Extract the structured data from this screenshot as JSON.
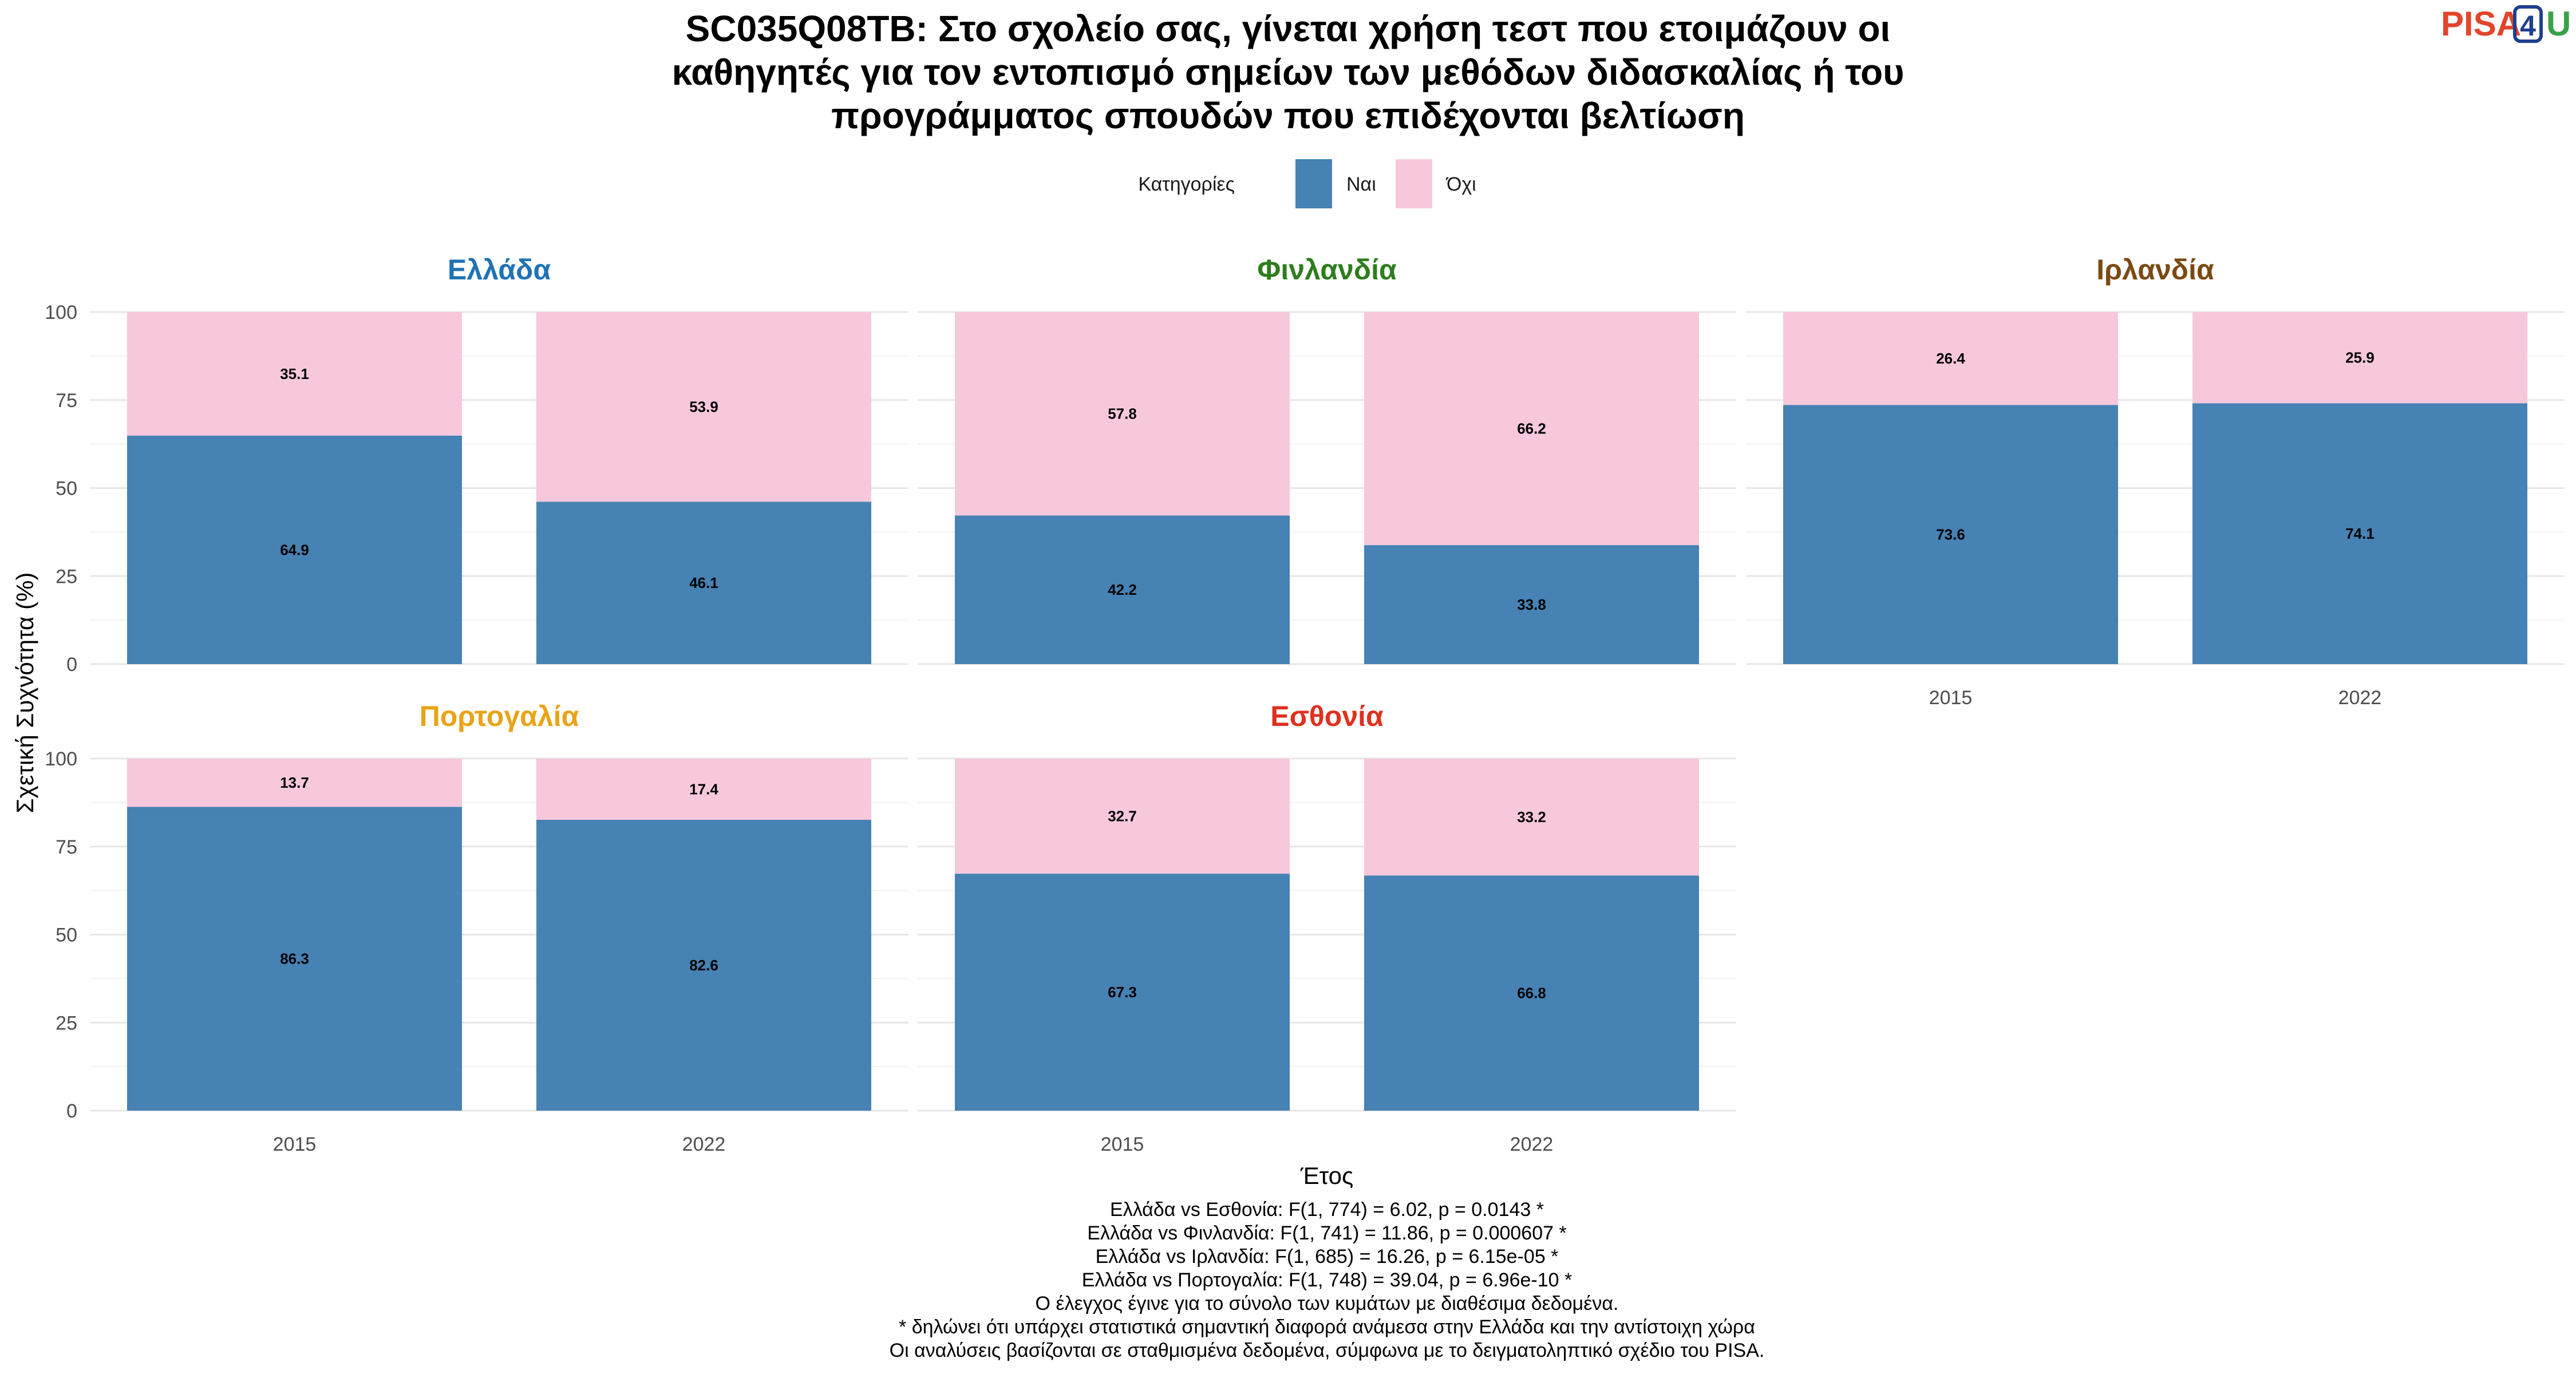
{
  "title_lines": [
    "SC035Q08TB: Στο σχολείο σας, γίνεται χρήση τεστ που ετοιμάζουν οι",
    "καθηγητές για τον εντοπισμό σημείων των μεθόδων διδασκαλίας ή του",
    "προγράμματος σπουδών που επιδέχονται βελτίωση"
  ],
  "logo": {
    "text": "PISA",
    "digit": "4",
    "letter": "U"
  },
  "chart_data": {
    "type": "bar",
    "stacked": true,
    "percent": true,
    "xlabel": "Έτος",
    "ylabel": "Σχετική Συχνότητα (%)",
    "ylim": [
      0,
      100
    ],
    "yticks": [
      0,
      25,
      50,
      75,
      100
    ],
    "categories": [
      "2015",
      "2022"
    ],
    "legend": {
      "title": "Κατηγορίες",
      "position": "top",
      "items": [
        {
          "label": "Ναι",
          "color": "#4682b4"
        },
        {
          "label": "Όχι",
          "color": "#f7c8dc"
        }
      ]
    },
    "grid": true,
    "panels": [
      {
        "name": "Ελλάδα",
        "color": "#1f73b4",
        "series": [
          {
            "name": "Ναι",
            "values": [
              64.9,
              46.1
            ]
          },
          {
            "name": "Όχι",
            "values": [
              35.1,
              53.9
            ]
          }
        ]
      },
      {
        "name": "Φινλανδία",
        "color": "#2e7d1f",
        "series": [
          {
            "name": "Ναι",
            "values": [
              42.2,
              33.8
            ]
          },
          {
            "name": "Όχι",
            "values": [
              57.8,
              66.2
            ]
          }
        ]
      },
      {
        "name": "Ιρλανδία",
        "color": "#7b4a14",
        "series": [
          {
            "name": "Ναι",
            "values": [
              73.6,
              74.1
            ]
          },
          {
            "name": "Όχι",
            "values": [
              26.4,
              25.9
            ]
          }
        ]
      },
      {
        "name": "Πορτογαλία",
        "color": "#e8a317",
        "series": [
          {
            "name": "Ναι",
            "values": [
              86.3,
              82.6
            ]
          },
          {
            "name": "Όχι",
            "values": [
              13.7,
              17.4
            ]
          }
        ]
      },
      {
        "name": "Εσθονία",
        "color": "#e0301e",
        "series": [
          {
            "name": "Ναι",
            "values": [
              67.3,
              66.8
            ]
          },
          {
            "name": "Όχι",
            "values": [
              32.7,
              33.2
            ]
          }
        ]
      }
    ]
  },
  "footnotes": [
    "Ελλάδα vs Εσθονία: F(1, 774) = 6.02, p = 0.0143 *",
    "Ελλάδα vs Φινλανδία: F(1, 741) = 11.86, p = 0.000607 *",
    "Ελλάδα vs Ιρλανδία: F(1, 685) = 16.26, p = 6.15e-05 *",
    "Ελλάδα vs Πορτογαλία: F(1, 748) = 39.04, p = 6.96e-10 *",
    "Ο έλεγχος έγινε για το σύνολο των κυμάτων με διαθέσιμα δεδομένα.",
    "* δηλώνει ότι υπάρχει στατιστικά σημαντική διαφορά ανάμεσα στην Ελλάδα και την αντίστοιχη χώρα",
    "Οι αναλύσεις βασίζονται σε σταθμισμένα δεδομένα, σύμφωνα με το δειγματοληπτικό σχέδιο του PISA."
  ]
}
